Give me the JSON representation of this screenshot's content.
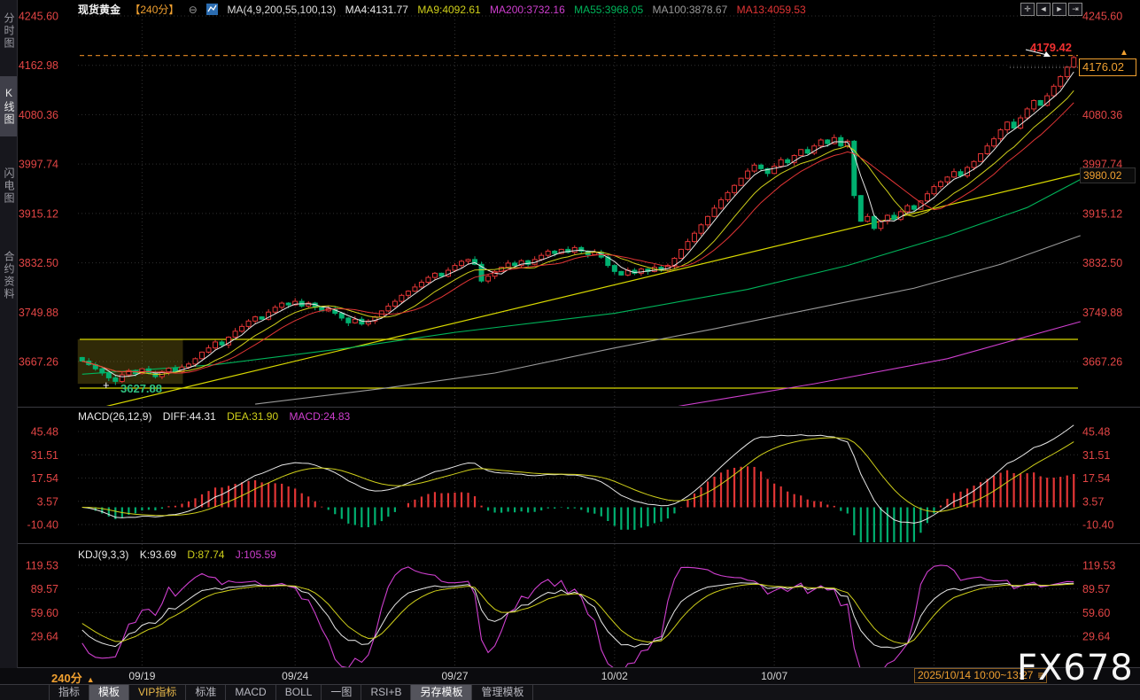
{
  "window": {
    "watermark": "FX678"
  },
  "sidebar": {
    "items": [
      {
        "label": "分时图",
        "active": false
      },
      {
        "label": "K线图",
        "active": true
      },
      {
        "label": "闪电图",
        "active": false
      },
      {
        "label": "合约资料",
        "active": false
      }
    ]
  },
  "header": {
    "symbol": "现货黄金",
    "period": "【240分】",
    "collapse_icon": "⊖",
    "ma_settings": "MA(4,9,200,55,100,13)",
    "ma_values": [
      {
        "text": "MA4:4131.77",
        "color": "#e8e8e8"
      },
      {
        "text": "MA9:4092.61",
        "color": "#cfcf1a"
      },
      {
        "text": "MA200:3732.16",
        "color": "#cf3fcf"
      },
      {
        "text": "MA55:3968.05",
        "color": "#00b45a"
      },
      {
        "text": "MA100:3878.67",
        "color": "#9a9a9a"
      },
      {
        "text": "MA13:4059.53",
        "color": "#e23535"
      }
    ],
    "icons": [
      "move-icon",
      "shift-left-icon",
      "shift-right-icon",
      "export-icon"
    ]
  },
  "macd_header": {
    "name": "MACD(26,12,9)",
    "diff": "DIFF:44.31",
    "dea": "DEA:31.90",
    "macd": "MACD:24.83"
  },
  "kdj_header": {
    "name": "KDJ(9,3,3)",
    "k": "K:93.69",
    "d": "D:87.74",
    "j": "J:105.59"
  },
  "price_tags": {
    "current": "4176.02",
    "reference": "3980.02",
    "high": "4179.42",
    "low": "3627.88",
    "arrow": "▲"
  },
  "time_axis": {
    "period_label": "240分",
    "period_arrow": "▲",
    "range_label": "2025/10/14 10:00~13:27",
    "menu_icon": "≡"
  },
  "bottom_toolbar": {
    "items": [
      {
        "label": "指标",
        "active": false,
        "vip": false
      },
      {
        "label": "模板",
        "active": true,
        "vip": false
      },
      {
        "label": "VIP指标",
        "active": false,
        "vip": true
      },
      {
        "label": "标准",
        "active": false,
        "vip": false
      },
      {
        "label": "MACD",
        "active": false,
        "vip": false
      },
      {
        "label": "BOLL",
        "active": false,
        "vip": false
      },
      {
        "label": "一图",
        "active": false,
        "vip": false
      },
      {
        "label": "RSI+B",
        "active": false,
        "vip": false
      },
      {
        "label": "另存模板",
        "active": true,
        "vip": false
      },
      {
        "label": "管理模板",
        "active": false,
        "vip": false
      }
    ]
  },
  "chart_data": {
    "type": "candlestick",
    "title": "现货黄金 240分",
    "y_axis_main": [
      "4245.60",
      "4162.98",
      "4080.36",
      "3997.74",
      "3915.12",
      "3832.50",
      "3749.88",
      "3667.26"
    ],
    "y_axis_macd": [
      "45.48",
      "31.51",
      "17.54",
      "3.57",
      "-10.40"
    ],
    "y_axis_kdj": [
      "119.53",
      "89.57",
      "59.60",
      "29.64"
    ],
    "x_ticks": [
      {
        "i": 9,
        "label": "09/19"
      },
      {
        "i": 32,
        "label": "09/24"
      },
      {
        "i": 56,
        "label": "09/27"
      },
      {
        "i": 80,
        "label": "10/02"
      },
      {
        "i": 104,
        "label": "10/07"
      },
      {
        "i": 128,
        "label": ""
      }
    ],
    "open0": 3674,
    "closes": [
      3668,
      3662,
      3655,
      3648,
      3640,
      3634,
      3645,
      3652,
      3647,
      3655,
      3648,
      3642,
      3650,
      3656,
      3650,
      3658,
      3663,
      3672,
      3683,
      3690,
      3700,
      3695,
      3708,
      3718,
      3726,
      3735,
      3742,
      3738,
      3750,
      3758,
      3765,
      3762,
      3768,
      3760,
      3765,
      3758,
      3752,
      3756,
      3748,
      3740,
      3732,
      3738,
      3730,
      3735,
      3742,
      3752,
      3760,
      3768,
      3778,
      3785,
      3792,
      3800,
      3808,
      3815,
      3810,
      3820,
      3828,
      3835,
      3838,
      3830,
      3802,
      3810,
      3818,
      3825,
      3832,
      3828,
      3836,
      3830,
      3838,
      3845,
      3852,
      3848,
      3855,
      3850,
      3858,
      3852,
      3846,
      3850,
      3842,
      3828,
      3818,
      3812,
      3820,
      3815,
      3822,
      3818,
      3825,
      3820,
      3828,
      3840,
      3855,
      3868,
      3882,
      3896,
      3910,
      3924,
      3938,
      3950,
      3962,
      3974,
      3986,
      3996,
      3990,
      3982,
      3994,
      4005,
      4000,
      4012,
      4022,
      4016,
      4028,
      4038,
      4032,
      4042,
      4028,
      4036,
      3945,
      3902,
      3910,
      3890,
      3902,
      3912,
      3905,
      3918,
      3928,
      3922,
      3936,
      3948,
      3960,
      3968,
      3976,
      3985,
      3978,
      3992,
      4002,
      4015,
      4028,
      4040,
      4055,
      4068,
      4058,
      4075,
      4090,
      4104,
      4096,
      4112,
      4128,
      4144,
      4160,
      4176.02
    ],
    "low_override": {
      "5": 3627.88
    },
    "high_override": {
      "149": 4179.42
    },
    "high_price": 4179.42,
    "current_price": 4176.02,
    "reference_price": 3980.02,
    "marked_low": 3627.88,
    "hlines": [
      3704.3,
      3622.8
    ],
    "trendline": [
      [
        -1,
        3580
      ],
      [
        150,
        3982
      ]
    ],
    "selection_box": {
      "i0": -0.3,
      "i1": 15.5,
      "top": 3704.3,
      "bottom": 3630
    },
    "ma_long": {
      "ma55": {
        "color": "#00b45a",
        "points": [
          [
            0,
            3646
          ],
          [
            20,
            3662
          ],
          [
            40,
            3690
          ],
          [
            56,
            3716
          ],
          [
            80,
            3748
          ],
          [
            100,
            3788
          ],
          [
            115,
            3828
          ],
          [
            130,
            3878
          ],
          [
            142,
            3925
          ],
          [
            150,
            3972
          ]
        ]
      },
      "ma100": {
        "color": "#9a9a9a",
        "points": [
          [
            26,
            3596
          ],
          [
            45,
            3622
          ],
          [
            62,
            3648
          ],
          [
            80,
            3690
          ],
          [
            95,
            3722
          ],
          [
            110,
            3756
          ],
          [
            125,
            3790
          ],
          [
            138,
            3830
          ],
          [
            150,
            3878
          ]
        ]
      },
      "ma200": {
        "color": "#cf3fcf",
        "points": [
          [
            85,
            3584
          ],
          [
            110,
            3630
          ],
          [
            130,
            3672
          ],
          [
            150,
            3734
          ]
        ]
      }
    },
    "indicator_params": {
      "ma": [
        4,
        9,
        200,
        55,
        100,
        13
      ],
      "macd": [
        26,
        12,
        9
      ],
      "kdj": [
        9,
        3,
        3
      ]
    },
    "colors": {
      "up": "#e23535",
      "down": "#00b070",
      "axis": "#e24545",
      "ma4": "#e8e8e8",
      "ma9": "#cfcf1a",
      "ma13": "#e23535",
      "grid": "#303030",
      "hline": "#d8d800",
      "dashed_high": "#cc7a1e",
      "selection": "rgba(160,140,25,0.30)"
    }
  }
}
